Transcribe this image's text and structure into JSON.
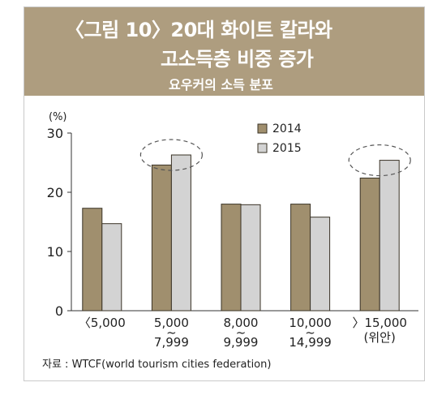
{
  "header": {
    "title_line1": "〈그림 10〉20대 화이트 칼라와",
    "title_line2": "고소득층 비중 증가",
    "subtitle": "요우커의 소득 분포"
  },
  "source": "자료 : WTCF(world tourism cities federation)",
  "colors": {
    "header_bg": "#ae9d7f",
    "series_2014": "#a08f6e",
    "series_2015": "#d3d3d3"
  },
  "chart_data": {
    "type": "bar",
    "title": "요우커의 소득 분포",
    "ylabel": "(%)",
    "ylim": [
      0,
      30
    ],
    "yticks": [
      "0",
      "10",
      "20",
      "30"
    ],
    "categories": [
      "〈5,000",
      "5,000~7,999",
      "8,000~9,999",
      "10,000~14,999",
      "〉15,000(위안)"
    ],
    "category_label_lines": [
      [
        "〈5,000"
      ],
      [
        "5,000",
        "~",
        "7,999"
      ],
      [
        "8,000",
        "~",
        "9,999"
      ],
      [
        "10,000",
        "~",
        "14,999"
      ],
      [
        "〉15,000",
        "(위안)"
      ]
    ],
    "series": [
      {
        "name": "2014",
        "values": [
          17.3,
          24.6,
          18.0,
          18.0,
          22.4
        ]
      },
      {
        "name": "2015",
        "values": [
          14.7,
          26.3,
          17.9,
          15.8,
          25.4
        ]
      }
    ],
    "highlighted_categories": [
      1,
      4
    ],
    "legend_position": "top-right",
    "grid": false
  }
}
